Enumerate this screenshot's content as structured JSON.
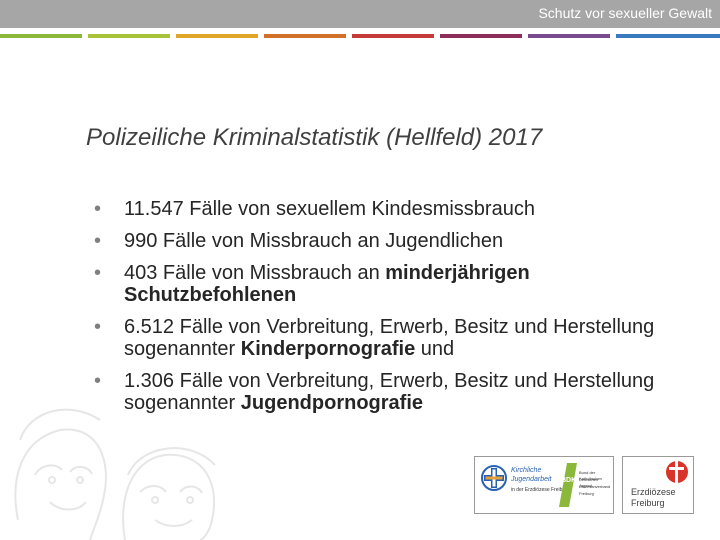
{
  "header": {
    "title": "Schutz vor sexueller Gewalt",
    "stripe_colors": [
      "#8bb83a",
      "#a8c23a",
      "#e0a62a",
      "#d2712a",
      "#c63a3a",
      "#8e2e5a",
      "#7a4a8e",
      "#3a7abf"
    ]
  },
  "slide": {
    "title": "Polizeiliche Kriminalstatistik (Hellfeld) 2017",
    "bullets": [
      {
        "text": "11.547 Fälle von sexuellem Kindesmissbrauch"
      },
      {
        "text": "990 Fälle von Missbrauch an Jugendlichen"
      },
      {
        "pre": "403 Fälle von Missbrauch an ",
        "bold": "minderjährigen Schutzbefohlenen",
        "post": ""
      },
      {
        "pre": "6.512 Fälle von Verbreitung, Erwerb, Besitz und Herstellung sogenannter ",
        "bold": "Kinderpornografie",
        "post": " und"
      },
      {
        "pre": "1.306 Fälle von Verbreitung, Erwerb, Besitz und Herstellung sogenannter ",
        "bold": "Jugendpornografie",
        "post": ""
      }
    ],
    "bullet_glyph": "•"
  },
  "logos": {
    "kirchliche": {
      "line1": "Kirchliche",
      "line2": "Jugendarbeit",
      "line3": "in der Erzdiözese Freiburg"
    },
    "bdkj": {
      "name": "BDKJ",
      "line1": "Bund der Deutschen",
      "line2": "Katholischen Jugend",
      "line3": "Diözesanverband Freiburg"
    },
    "erzdioezese": {
      "line1": "Erzdiözese",
      "line2": "Freiburg"
    }
  }
}
